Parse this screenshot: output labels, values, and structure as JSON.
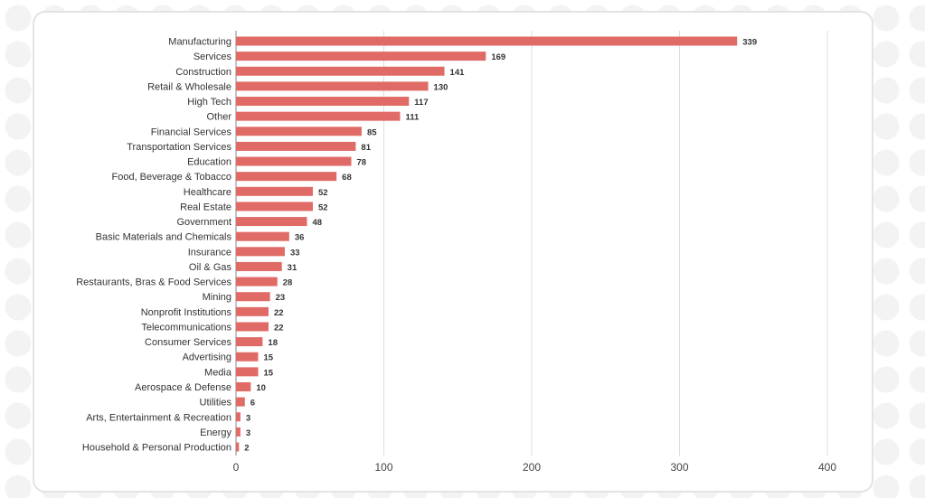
{
  "chart_data": {
    "type": "bar",
    "orientation": "horizontal",
    "title": "",
    "xlabel": "",
    "ylabel": "",
    "xlim": [
      0,
      400
    ],
    "xticks": [
      0,
      100,
      200,
      300,
      400
    ],
    "grid": "vertical",
    "bar_color": "#e06b66",
    "categories": [
      "Manufacturing",
      "Services",
      "Construction",
      "Retail & Wholesale",
      "High Tech",
      "Other",
      "Financial Services",
      "Transportation Services",
      "Education",
      "Food, Beverage & Tobacco",
      "Healthcare",
      "Real Estate",
      "Government",
      "Basic Materials and Chemicals",
      "Insurance",
      "Oil & Gas",
      "Restaurants, Bras & Food Services",
      "Mining",
      "Nonprofit Institutions",
      "Telecommunications",
      "Consumer Services",
      "Advertising",
      "Media",
      "Aerospace & Defense",
      "Utilities",
      "Arts, Entertainment & Recreation",
      "Energy",
      "Household & Personal Production"
    ],
    "values": [
      339,
      169,
      141,
      130,
      117,
      111,
      85,
      81,
      78,
      68,
      52,
      52,
      48,
      36,
      33,
      31,
      28,
      23,
      22,
      22,
      18,
      15,
      15,
      10,
      6,
      3,
      3,
      2
    ]
  }
}
